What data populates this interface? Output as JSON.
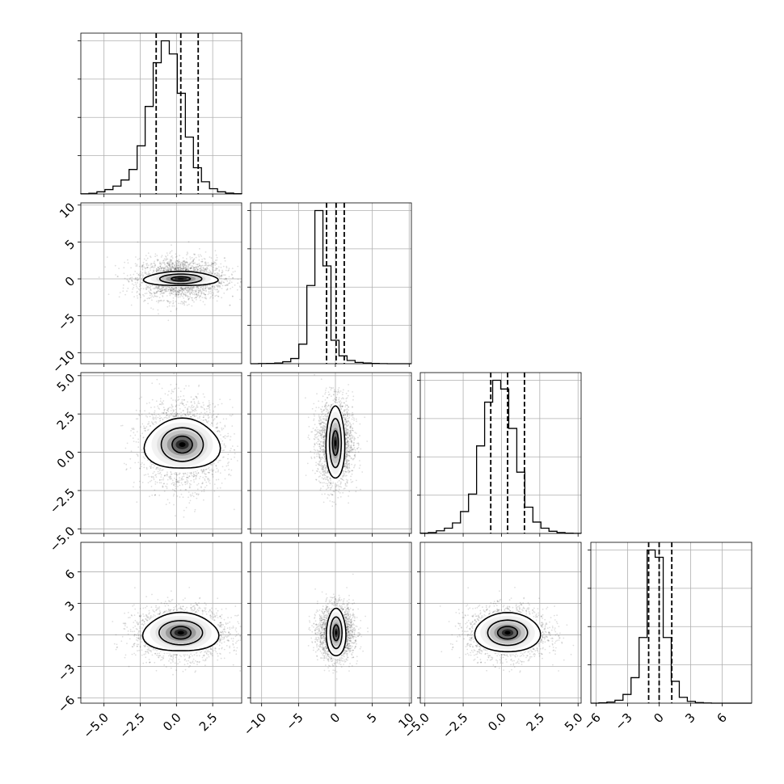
{
  "chart_data": {
    "type": "corner",
    "grid": true,
    "quantile_lines": "dashed",
    "variables": [
      {
        "index": 0,
        "range": [
          -6.6,
          4.5
        ],
        "ticks": [
          -5.0,
          -2.5,
          0.0,
          2.5
        ],
        "tick_labels": [
          "−5.0",
          "−2.5",
          "0.0",
          "2.5"
        ],
        "quantiles": [
          -1.4,
          0.3,
          1.5
        ],
        "hist": [
          0.2,
          0.8,
          2.5,
          5,
          9,
          16,
          28,
          55,
          100,
          150,
          175,
          160,
          115,
          65,
          30,
          14,
          6,
          2.5,
          1,
          0.3
        ]
      },
      {
        "index": 1,
        "range": [
          -11.5,
          10.3
        ],
        "ticks": [
          -10,
          -5,
          0,
          5,
          10
        ],
        "tick_labels": [
          "−10",
          "−5",
          "0",
          "5",
          "10"
        ],
        "quantiles": [
          -1.2,
          0.1,
          1.2
        ],
        "hist": [
          0,
          0.3,
          0.5,
          1,
          3,
          8,
          30,
          120,
          235,
          150,
          36,
          12,
          5,
          2,
          1,
          0.5,
          0.2,
          0,
          0,
          0
        ]
      },
      {
        "index": 2,
        "range": [
          -5.3,
          5.2
        ],
        "ticks": [
          -5.0,
          -2.5,
          0.0,
          2.5,
          5.0
        ],
        "tick_labels": [
          "−5.0",
          "−2.5",
          "0.0",
          "2.5",
          "5.0"
        ],
        "quantiles": [
          -0.7,
          0.4,
          1.5
        ],
        "hist": [
          0.3,
          1,
          3,
          6,
          12,
          25,
          45,
          100,
          150,
          175,
          165,
          120,
          70,
          30,
          13,
          6,
          2.5,
          1,
          0.3,
          0.1
        ]
      },
      {
        "index": 3,
        "range": [
          -6.5,
          8.8
        ],
        "ticks": [
          -6,
          -3,
          0,
          3,
          6
        ],
        "tick_labels": [
          "−6",
          "−3",
          "0",
          "3",
          "6"
        ],
        "quantiles": [
          -1.0,
          0.0,
          1.2
        ],
        "hist": [
          0,
          0.5,
          1.5,
          4,
          12,
          35,
          90,
          210,
          200,
          90,
          30,
          8,
          2.5,
          0.8,
          0.3,
          0,
          0,
          0,
          0,
          0
        ]
      }
    ],
    "pairs": [
      {
        "x": 0,
        "y": 1,
        "center": [
          0.3,
          0.0
        ],
        "sx": 1.5,
        "sy": 1.4,
        "contours": [
          [
            2.45,
            1.0,
            0.1
          ],
          [
            1.45,
            0.65,
            0
          ],
          [
            0.65,
            0.3,
            0
          ]
        ]
      },
      {
        "x": 0,
        "y": 2,
        "center": [
          0.4,
          0.5
        ],
        "sx": 1.4,
        "sy": 1.4,
        "contours": [
          [
            2.5,
            1.7,
            0.1
          ],
          [
            1.45,
            1.1,
            0
          ],
          [
            0.7,
            0.55,
            0
          ]
        ]
      },
      {
        "x": 1,
        "y": 2,
        "center": [
          0.0,
          0.6
        ],
        "sx": 1.2,
        "sy": 1.4,
        "contours": [
          [
            1.25,
            2.4,
            0.05
          ],
          [
            0.8,
            1.6,
            0
          ],
          [
            0.4,
            0.8,
            0
          ]
        ]
      },
      {
        "x": 0,
        "y": 3,
        "center": [
          0.3,
          0.2
        ],
        "sx": 1.6,
        "sy": 1.2,
        "contours": [
          [
            2.5,
            1.9,
            0.1
          ],
          [
            1.5,
            1.15,
            0
          ],
          [
            0.7,
            0.6,
            0
          ]
        ]
      },
      {
        "x": 1,
        "y": 3,
        "center": [
          0.1,
          0.2
        ],
        "sx": 1.2,
        "sy": 1.3,
        "contours": [
          [
            1.3,
            2.3,
            0.05
          ],
          [
            0.8,
            1.5,
            0
          ],
          [
            0.4,
            0.75,
            0
          ]
        ]
      },
      {
        "x": 2,
        "y": 3,
        "center": [
          0.4,
          0.2
        ],
        "sx": 1.3,
        "sy": 1.2,
        "contours": [
          [
            2.1,
            1.9,
            0.05
          ],
          [
            1.3,
            1.2,
            0
          ],
          [
            0.65,
            0.6,
            0
          ]
        ]
      }
    ]
  }
}
